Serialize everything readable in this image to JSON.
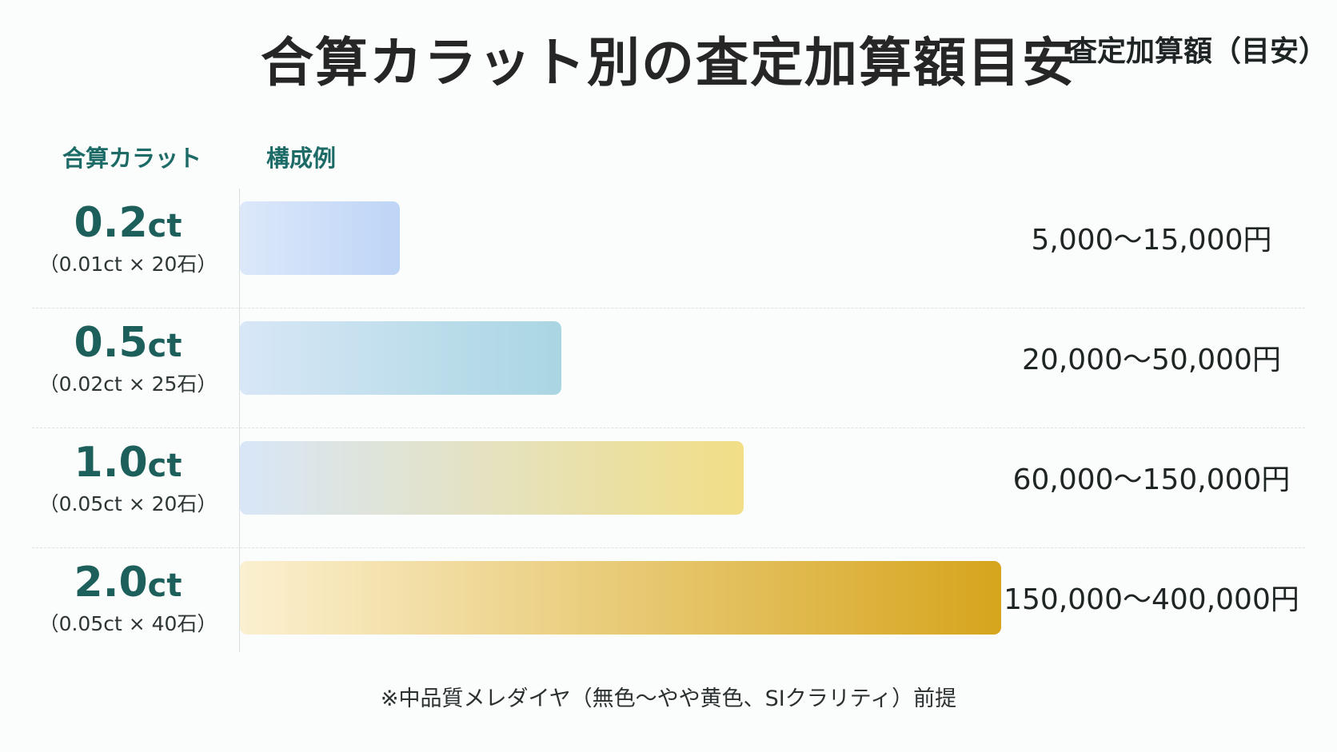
{
  "title": "合算カラット別の査定加算額目安",
  "headers": {
    "carat": "合算カラット",
    "example": "構成例",
    "amount": "査定加算額（目安）"
  },
  "chart_data": {
    "type": "bar",
    "orientation": "horizontal",
    "title": "合算カラット別の査定加算額目安",
    "categories": [
      "0.2ct",
      "0.5ct",
      "1.0ct",
      "2.0ct"
    ],
    "values": [
      0.2,
      0.5,
      1.0,
      2.0
    ],
    "rows": [
      {
        "value": "0.2",
        "unit": "ct",
        "composition": "（0.01ct × 20石）",
        "amount": "5,000〜15,000円"
      },
      {
        "value": "0.5",
        "unit": "ct",
        "composition": "（0.02ct × 25石）",
        "amount": "20,000〜50,000円"
      },
      {
        "value": "1.0",
        "unit": "ct",
        "composition": "（0.05ct × 20石）",
        "amount": "60,000〜150,000円"
      },
      {
        "value": "2.0",
        "unit": "ct",
        "composition": "（0.05ct × 40石）",
        "amount": "150,000〜400,000円"
      }
    ],
    "bar_colors": [
      [
        "#dce8fa",
        "#bed5f6"
      ],
      [
        "#d8e7f7",
        "#a9d6e2"
      ],
      [
        "#d8e6f8",
        "#f1de86"
      ],
      [
        "#fbf0d0",
        "#d6a51d"
      ]
    ],
    "grid": false
  },
  "note": "※中品質メレダイヤ（無色〜やや黄色、SIクラリティ）前提"
}
